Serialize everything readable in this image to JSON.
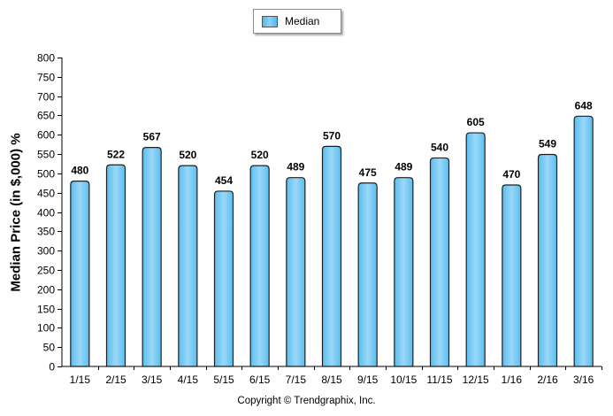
{
  "chart_data": {
    "type": "bar",
    "categories": [
      "1/15",
      "2/15",
      "3/15",
      "4/15",
      "5/15",
      "6/15",
      "7/15",
      "8/15",
      "9/15",
      "10/15",
      "11/15",
      "12/15",
      "1/16",
      "2/16",
      "3/16"
    ],
    "series": [
      {
        "name": "Median",
        "values": [
          480,
          522,
          567,
          520,
          454,
          520,
          489,
          570,
          475,
          489,
          540,
          605,
          470,
          549,
          648
        ]
      }
    ],
    "ylabel": "Median Price (in $,000) %",
    "xlabel": "",
    "ylim": [
      0,
      800
    ],
    "yticks": [
      0,
      50,
      100,
      150,
      200,
      250,
      300,
      350,
      400,
      450,
      500,
      550,
      600,
      650,
      700,
      750,
      800
    ],
    "grid": false,
    "legend": "top-center",
    "data_labels": true,
    "footer": "Copyright © Trendgraphix, Inc.",
    "bar_color": "#5bbdf0",
    "bar_highlight": "#9ad8f7",
    "bar_border": "#1f1f1f"
  }
}
